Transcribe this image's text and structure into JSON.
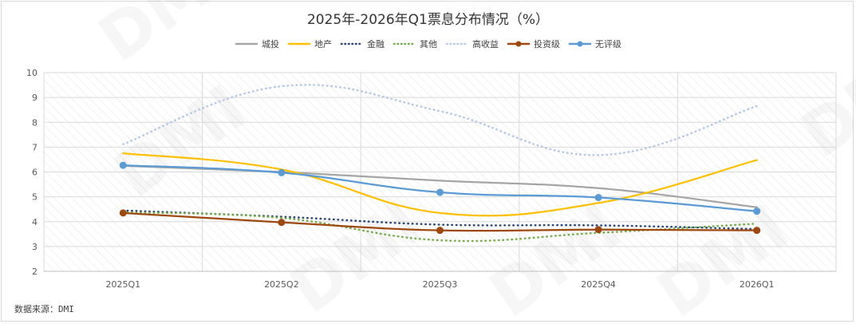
{
  "chart_data": {
    "type": "line",
    "title": "2025年-2026年Q1票息分布情况（%）",
    "categories": [
      "2025Q1",
      "2025Q2",
      "2025Q3",
      "2025Q4",
      "2026Q1"
    ],
    "ylim": [
      2,
      10
    ],
    "yticks": [
      "2",
      "3",
      "4",
      "5",
      "6",
      "7",
      "8",
      "9",
      "10"
    ],
    "grid": true,
    "smooth": true,
    "legend_position": "top",
    "series": [
      {
        "name": "城投",
        "values": [
          6.25,
          6.0,
          5.65,
          5.35,
          4.58
        ],
        "color": "#a5a5a5",
        "style": "solid",
        "markers": false
      },
      {
        "name": "地产",
        "values": [
          6.75,
          6.1,
          4.35,
          4.75,
          6.48
        ],
        "color": "#ffc000",
        "style": "solid",
        "markers": false
      },
      {
        "name": "金融",
        "values": [
          4.45,
          4.2,
          3.88,
          3.85,
          3.7
        ],
        "color": "#264478",
        "style": "dotted",
        "markers": false
      },
      {
        "name": "其他",
        "values": [
          4.38,
          4.15,
          3.25,
          3.55,
          3.92
        ],
        "color": "#70ad47",
        "style": "dotted",
        "markers": false
      },
      {
        "name": "高收益",
        "values": [
          7.12,
          9.45,
          8.45,
          6.68,
          8.65
        ],
        "color": "#b4c7e7",
        "style": "dotted",
        "markers": false
      },
      {
        "name": "投资级",
        "values": [
          4.35,
          3.97,
          3.65,
          3.68,
          3.65
        ],
        "color": "#9e480e",
        "style": "solid",
        "markers": true
      },
      {
        "name": "无评级",
        "values": [
          6.27,
          5.97,
          5.18,
          4.97,
          4.42
        ],
        "color": "#5b9bd5",
        "style": "solid",
        "markers": true
      }
    ]
  },
  "source_text": "数据来源：DMI",
  "watermark_text": "DMI"
}
